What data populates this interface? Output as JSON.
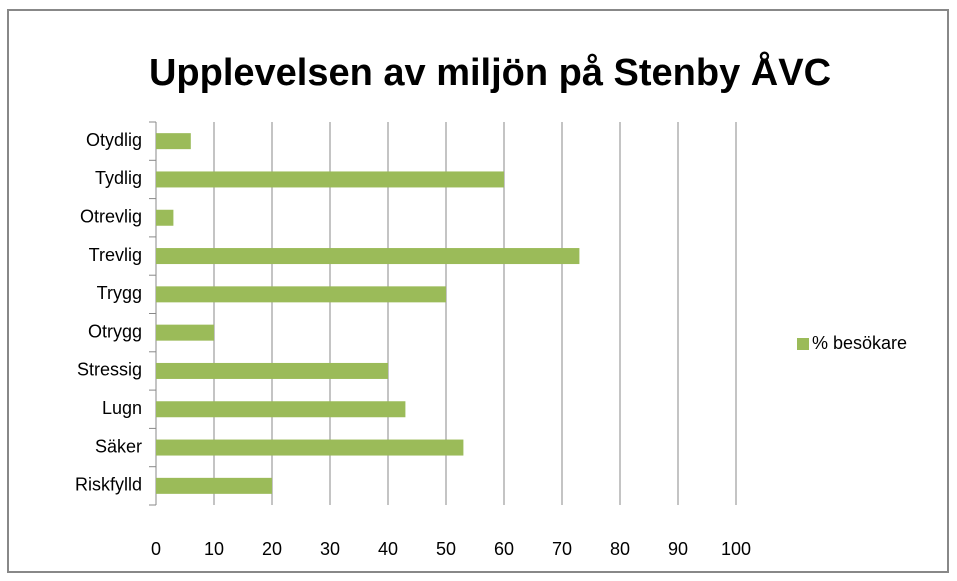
{
  "chart_data": {
    "type": "bar",
    "orientation": "horizontal",
    "title": "Upplevelsen av miljön på Stenby ÅVC",
    "categories": [
      "Otydlig",
      "Tydlig",
      "Otrevlig",
      "Trevlig",
      "Trygg",
      "Otrygg",
      "Stressig",
      "Lugn",
      "Säker",
      "Riskfylld"
    ],
    "series": [
      {
        "name": "% besökare",
        "color": "#9bbb59",
        "values": [
          6,
          60,
          3,
          73,
          50,
          10,
          40,
          43,
          53,
          20
        ]
      }
    ],
    "xlim": [
      0,
      100
    ],
    "xticks": [
      0,
      10,
      20,
      30,
      40,
      50,
      60,
      70,
      80,
      90,
      100
    ],
    "grid": true,
    "legend": "right"
  }
}
